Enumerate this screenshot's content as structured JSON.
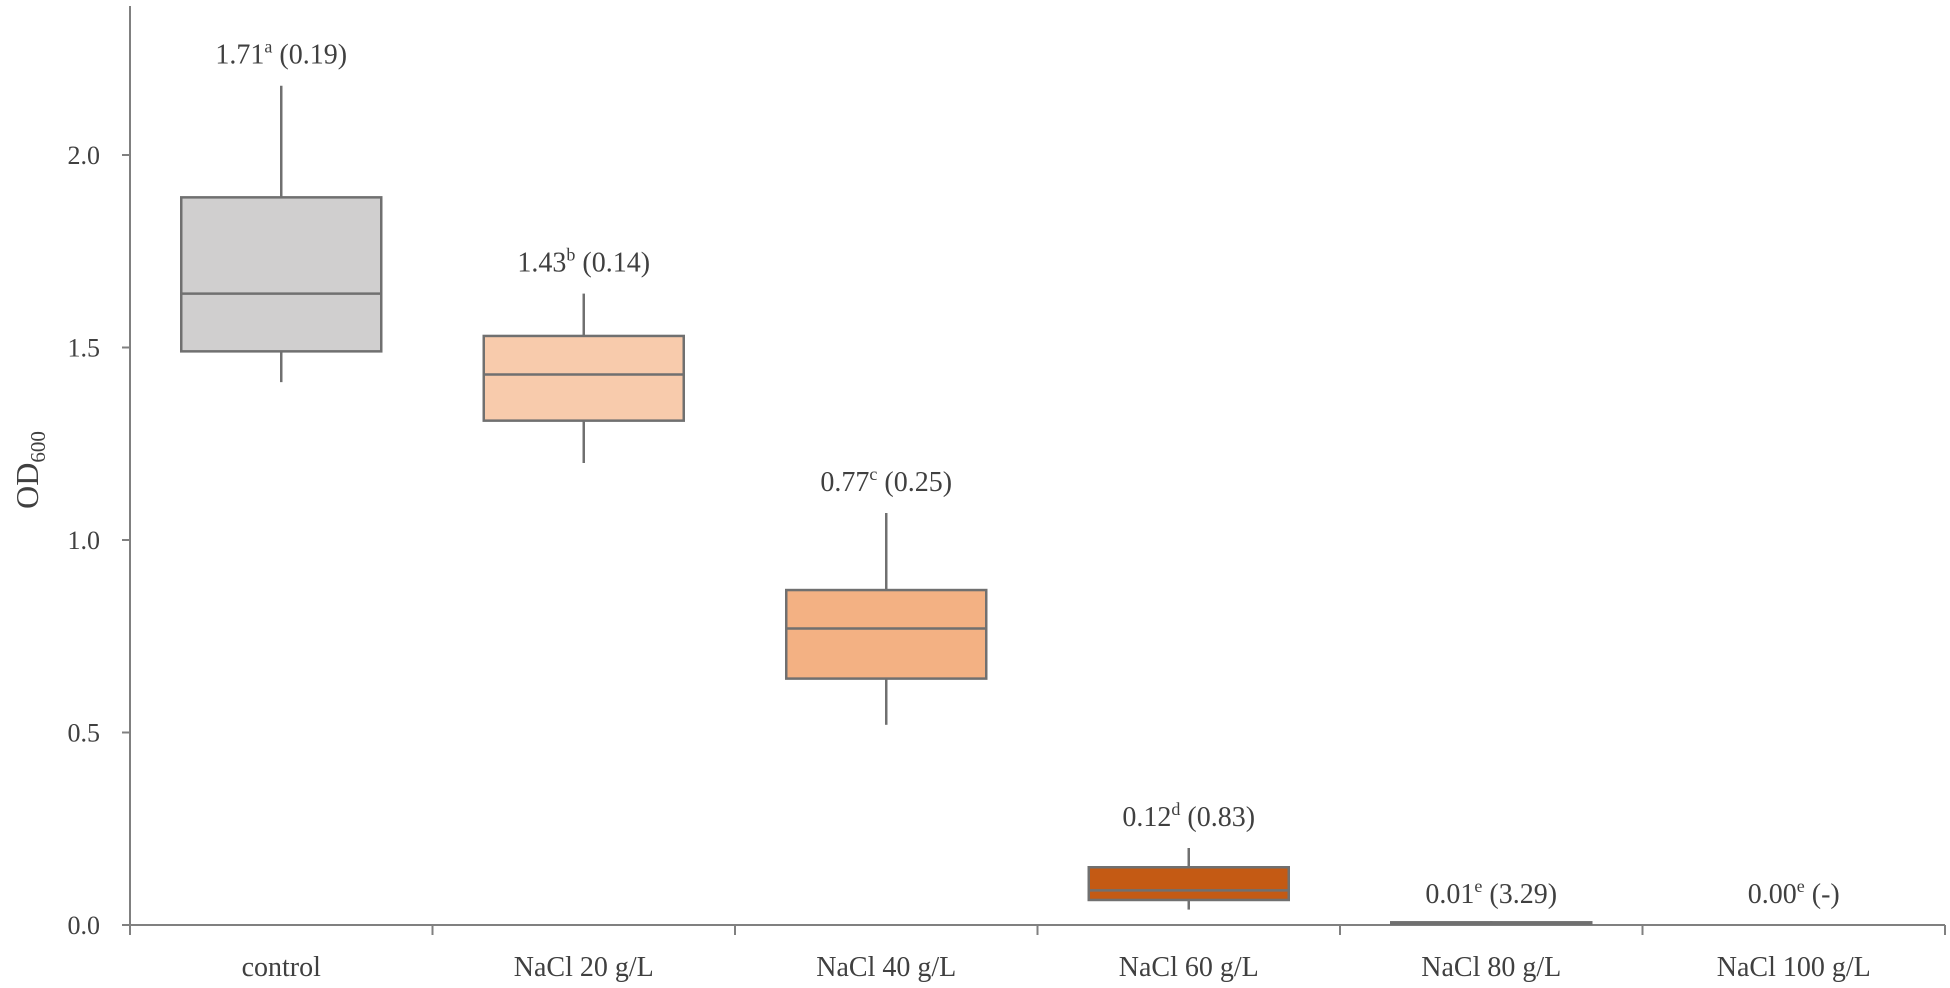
{
  "chart_data": {
    "type": "box",
    "ylabel": {
      "main": "OD",
      "sub": "600"
    },
    "ylim": [
      0,
      2.5
    ],
    "yticks": [
      "0.0",
      "0.5",
      "1.0",
      "1.5",
      "2.0"
    ],
    "ytick_values": [
      0,
      0.5,
      1.0,
      1.5,
      2.0
    ],
    "grid": false,
    "categories": [
      "control",
      "NaCl 20 g/L",
      "NaCl 40 g/L",
      "NaCl 60 g/L",
      "NaCl 80 g/L",
      "NaCl 100 g/L"
    ],
    "boxes": [
      {
        "category": "control",
        "min": 1.41,
        "q1": 1.49,
        "median": 1.64,
        "q3": 1.89,
        "max": 2.18,
        "color": "#d0cfcf",
        "annotation": {
          "value": "1.71",
          "letter": "a",
          "cv": "(0.19)"
        }
      },
      {
        "category": "NaCl 20 g/L",
        "min": 1.2,
        "q1": 1.31,
        "median": 1.43,
        "q3": 1.53,
        "max": 1.64,
        "color": "#f8cbac",
        "annotation": {
          "value": "1.43",
          "letter": "b",
          "cv": "(0.14)"
        }
      },
      {
        "category": "NaCl 40 g/L",
        "min": 0.52,
        "q1": 0.64,
        "median": 0.77,
        "q3": 0.87,
        "max": 1.07,
        "color": "#f3b183",
        "annotation": {
          "value": "0.77",
          "letter": "c",
          "cv": "(0.25)"
        }
      },
      {
        "category": "NaCl 60 g/L",
        "min": 0.04,
        "q1": 0.065,
        "median": 0.09,
        "q3": 0.15,
        "max": 0.2,
        "color": "#c45a14",
        "annotation": {
          "value": "0.12",
          "letter": "d",
          "cv": "(0.83)"
        }
      },
      {
        "category": "NaCl 80 g/L",
        "min": 0.0,
        "q1": 0.003,
        "median": 0.005,
        "q3": 0.007,
        "max": 0.01,
        "color": "#c45a14",
        "annotation": {
          "value": "0.01",
          "letter": "e",
          "cv": "(3.29)"
        }
      },
      {
        "category": "NaCl 100 g/L",
        "min": null,
        "q1": null,
        "median": null,
        "q3": null,
        "max": null,
        "color": "#c45a14",
        "annotation": {
          "value": "0.00",
          "letter": "e",
          "cv": "(-)"
        }
      }
    ],
    "colors": {
      "axis": "#808080",
      "box_stroke": "#707070",
      "text": "#404040"
    }
  }
}
